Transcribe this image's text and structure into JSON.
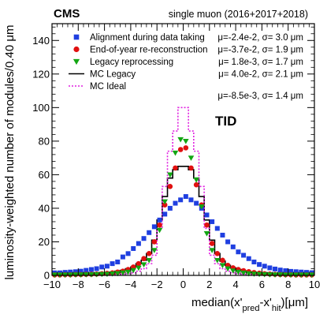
{
  "header": {
    "experiment": "CMS",
    "dataset": "single muon (2016+2017+2018)"
  },
  "tag": "TID",
  "chart_data": {
    "type": "scatter",
    "xlabel_parts": {
      "main": "median(x'",
      "sub1": "pred",
      "mid": "-x'",
      "sub2": "hit",
      "end": ")[μm]"
    },
    "ylabel": "luminosity-weighted number of modules/0.40 μm",
    "xlim": [
      -10,
      10
    ],
    "ylim": [
      0,
      150
    ],
    "x_ticks": [
      -10,
      -8,
      -6,
      -4,
      -2,
      0,
      2,
      4,
      6,
      8,
      10
    ],
    "y_ticks": [
      0,
      20,
      40,
      60,
      80,
      100,
      120,
      140
    ],
    "x_tick_labels": [
      "−10",
      "−8",
      "−6",
      "−4",
      "−2",
      "0",
      "2",
      "4",
      "6",
      "8",
      "10"
    ],
    "y_tick_labels": [
      "0",
      "20",
      "40",
      "60",
      "80",
      "100",
      "120",
      "140"
    ],
    "grid": false,
    "legend_position": "top-left",
    "bin_centers": [
      -9.8,
      -9.4,
      -9.0,
      -8.6,
      -8.2,
      -7.8,
      -7.4,
      -7.0,
      -6.6,
      -6.2,
      -5.8,
      -5.4,
      -5.0,
      -4.6,
      -4.2,
      -3.8,
      -3.4,
      -3.0,
      -2.6,
      -2.2,
      -1.8,
      -1.4,
      -1.0,
      -0.6,
      -0.2,
      0.2,
      0.6,
      1.0,
      1.4,
      1.8,
      2.2,
      2.6,
      3.0,
      3.4,
      3.8,
      4.2,
      4.6,
      5.0,
      5.4,
      5.8,
      6.2,
      6.6,
      7.0,
      7.4,
      7.8,
      8.2,
      8.6,
      9.0,
      9.4,
      9.8
    ],
    "series": [
      {
        "name": "Alignment during data taking",
        "stat": "μ=-2.4e-2, σ= 3.0 μm",
        "marker": "square",
        "color": "#1f3fe0",
        "values": [
          1.5,
          1.5,
          1.8,
          2,
          2.2,
          2.5,
          3,
          3.5,
          4,
          5,
          5.5,
          7,
          8,
          11,
          13,
          16,
          19,
          22,
          25.5,
          29,
          33,
          36.5,
          40,
          43,
          45,
          47,
          45,
          43,
          40,
          36,
          32,
          28,
          24,
          20,
          17,
          14,
          12,
          10,
          8,
          6.5,
          5.5,
          4.5,
          3.8,
          3.2,
          2.8,
          2.4,
          2.2,
          2,
          1.8,
          1.6
        ]
      },
      {
        "name": "End-of-year re-reconstruction",
        "stat": "μ=-3.7e-2, σ= 1.9 μm",
        "marker": "circle",
        "color": "#e01010",
        "values": [
          0.3,
          0.3,
          0.4,
          0.4,
          0.5,
          0.5,
          0.6,
          0.7,
          0.8,
          1,
          1.2,
          1.5,
          2,
          2.5,
          3.5,
          5,
          7,
          10,
          13,
          20,
          30,
          42,
          53,
          64,
          75,
          76,
          64,
          54,
          42,
          30,
          19,
          13,
          9,
          6,
          4.5,
          3.5,
          2.8,
          2.2,
          1.7,
          1.3,
          1,
          0.8,
          0.6,
          0.5,
          0.4,
          0.4,
          0.3,
          0.3,
          0.3,
          0.3
        ]
      },
      {
        "name": "Legacy reprocessing",
        "stat": "μ= 1.8e-3, σ= 1.7 μm",
        "marker": "triangle-down",
        "color": "#13a613",
        "values": [
          0.3,
          0.3,
          0.3,
          0.3,
          0.4,
          0.4,
          0.5,
          0.5,
          0.6,
          0.7,
          0.8,
          1,
          1.2,
          1.6,
          2,
          3,
          4.5,
          6.5,
          9,
          15,
          27,
          44,
          60,
          73,
          81,
          80,
          70,
          57,
          41,
          25,
          15,
          9,
          6,
          4,
          2.8,
          2,
          1.5,
          1.1,
          0.9,
          0.7,
          0.6,
          0.5,
          0.4,
          0.4,
          0.3,
          0.3,
          0.3,
          0.3,
          0.3,
          0.3
        ]
      },
      {
        "name": "MC Legacy",
        "stat": "μ= 4.0e-2, σ= 2.1 μm",
        "marker": "step-line",
        "color": "#000000",
        "values": [
          0.5,
          0.5,
          0.5,
          0.6,
          0.6,
          0.7,
          0.8,
          0.9,
          1,
          1.2,
          1.5,
          2,
          2.5,
          3,
          4,
          5,
          7,
          9,
          13,
          21,
          33,
          47,
          58,
          63,
          65,
          65,
          63,
          58,
          47,
          33,
          21,
          13,
          8.5,
          6,
          4.5,
          3.5,
          2.7,
          2.1,
          1.7,
          1.3,
          1.1,
          0.9,
          0.8,
          0.7,
          0.6,
          0.6,
          0.5,
          0.5,
          0.5,
          0.5
        ]
      },
      {
        "name": "MC Ideal",
        "stat": "μ=-8.5e-3, σ= 1.4 μm",
        "marker": "dotted-step-line",
        "color": "#e020e0",
        "values": [
          0.1,
          0.1,
          0.1,
          0.1,
          0.1,
          0.1,
          0.2,
          0.2,
          0.2,
          0.3,
          0.3,
          0.4,
          0.5,
          0.7,
          1,
          1.5,
          2.5,
          4,
          7,
          12,
          28,
          53,
          74,
          86,
          100,
          100,
          86,
          74,
          53,
          28,
          12,
          7,
          4,
          2.5,
          1.5,
          1,
          0.7,
          0.5,
          0.4,
          0.3,
          0.3,
          0.2,
          0.2,
          0.2,
          0.1,
          0.1,
          0.1,
          0.1,
          0.1,
          0.1
        ]
      }
    ]
  }
}
